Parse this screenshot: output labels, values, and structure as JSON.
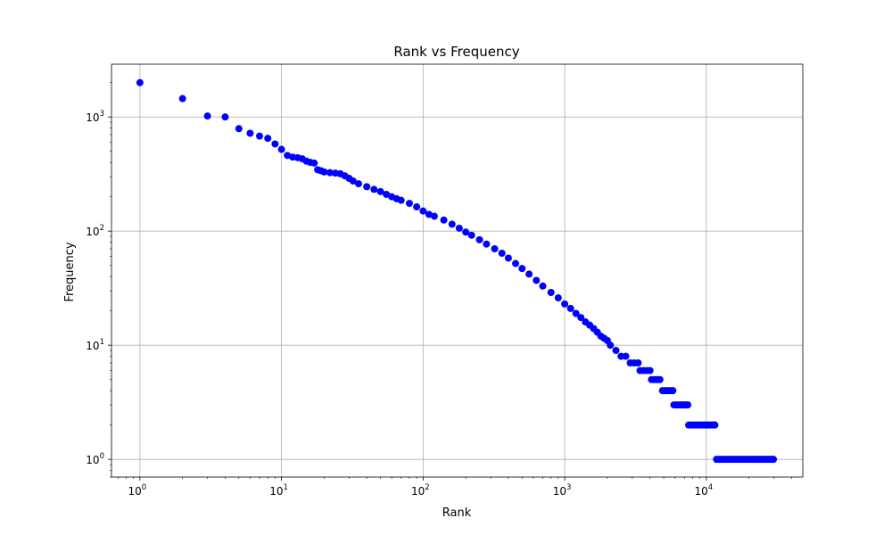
{
  "chart_data": {
    "type": "scatter",
    "title": "Rank vs Frequency",
    "xlabel": "Rank",
    "ylabel": "Frequency",
    "xscale": "log",
    "yscale": "log",
    "xlim": [
      0.63,
      48000
    ],
    "ylim": [
      0.7,
      2900
    ],
    "grid": true,
    "marker_color": "#0000ff",
    "x_ticks": [
      {
        "value": 1,
        "base": "10",
        "exp": "0"
      },
      {
        "value": 10,
        "base": "10",
        "exp": "1"
      },
      {
        "value": 100,
        "base": "10",
        "exp": "2"
      },
      {
        "value": 1000,
        "base": "10",
        "exp": "3"
      },
      {
        "value": 10000,
        "base": "10",
        "exp": "4"
      }
    ],
    "y_ticks": [
      {
        "value": 1,
        "base": "10",
        "exp": "0"
      },
      {
        "value": 10,
        "base": "10",
        "exp": "1"
      },
      {
        "value": 100,
        "base": "10",
        "exp": "2"
      },
      {
        "value": 1000,
        "base": "10",
        "exp": "3"
      }
    ],
    "series": [
      {
        "points": [
          [
            1,
            2000
          ],
          [
            2,
            1450
          ],
          [
            3,
            1020
          ],
          [
            4,
            1000
          ],
          [
            5,
            790
          ],
          [
            6,
            720
          ],
          [
            7,
            680
          ],
          [
            8,
            650
          ],
          [
            9,
            580
          ],
          [
            10,
            520
          ],
          [
            11,
            460
          ],
          [
            12,
            445
          ],
          [
            13,
            440
          ],
          [
            14,
            430
          ],
          [
            15,
            410
          ],
          [
            16,
            400
          ],
          [
            17,
            395
          ],
          [
            18,
            345
          ],
          [
            19,
            338
          ],
          [
            20,
            330
          ],
          [
            22,
            325
          ],
          [
            24,
            322
          ],
          [
            26,
            318
          ],
          [
            28,
            305
          ],
          [
            30,
            290
          ],
          [
            32,
            275
          ],
          [
            35,
            260
          ],
          [
            40,
            245
          ],
          [
            45,
            232
          ],
          [
            50,
            222
          ],
          [
            55,
            210
          ],
          [
            60,
            200
          ],
          [
            65,
            192
          ],
          [
            70,
            186
          ],
          [
            80,
            175
          ],
          [
            90,
            163
          ],
          [
            100,
            150
          ],
          [
            110,
            140
          ],
          [
            120,
            135
          ],
          [
            140,
            125
          ],
          [
            160,
            115
          ],
          [
            180,
            106
          ],
          [
            200,
            98
          ],
          [
            220,
            92
          ],
          [
            250,
            84
          ],
          [
            280,
            77
          ],
          [
            320,
            70
          ],
          [
            360,
            64
          ],
          [
            400,
            58
          ],
          [
            450,
            52
          ],
          [
            500,
            47
          ],
          [
            560,
            42
          ],
          [
            630,
            37
          ],
          [
            700,
            33
          ],
          [
            800,
            29
          ],
          [
            900,
            26
          ],
          [
            1000,
            23
          ],
          [
            1100,
            21
          ],
          [
            1200,
            19
          ],
          [
            1300,
            17.5
          ],
          [
            1400,
            16
          ],
          [
            1500,
            15
          ],
          [
            1600,
            14
          ],
          [
            1700,
            13
          ],
          [
            1800,
            12
          ],
          [
            1900,
            11.5
          ],
          [
            2000,
            11
          ],
          [
            2100,
            10
          ],
          [
            2300,
            9
          ],
          [
            2500,
            8
          ],
          [
            2700,
            8
          ],
          [
            2900,
            7
          ],
          [
            3100,
            7
          ],
          [
            3300,
            7
          ],
          [
            3400,
            6
          ],
          [
            3600,
            6
          ],
          [
            3800,
            6
          ],
          [
            4000,
            6
          ],
          [
            4100,
            5
          ],
          [
            4300,
            5
          ],
          [
            4500,
            5
          ],
          [
            4700,
            5
          ],
          [
            4900,
            4
          ],
          [
            5100,
            4
          ],
          [
            5300,
            4
          ],
          [
            5500,
            4
          ],
          [
            5700,
            4
          ],
          [
            5800,
            4
          ],
          [
            5900,
            3
          ],
          [
            6100,
            3
          ],
          [
            6300,
            3
          ],
          [
            6500,
            3
          ],
          [
            6700,
            3
          ],
          [
            6900,
            3
          ],
          [
            7100,
            3
          ],
          [
            7300,
            3
          ],
          [
            7400,
            3
          ],
          [
            7500,
            2
          ],
          [
            7800,
            2
          ],
          [
            8100,
            2
          ],
          [
            8400,
            2
          ],
          [
            8700,
            2
          ],
          [
            9000,
            2
          ],
          [
            9300,
            2
          ],
          [
            9600,
            2
          ],
          [
            9900,
            2
          ],
          [
            10200,
            2
          ],
          [
            10500,
            2
          ],
          [
            10800,
            2
          ],
          [
            11100,
            2
          ],
          [
            11400,
            2
          ],
          [
            11500,
            2
          ],
          [
            11800,
            1
          ],
          [
            12300,
            1
          ],
          [
            12800,
            1
          ],
          [
            13300,
            1
          ],
          [
            13800,
            1
          ],
          [
            14300,
            1
          ],
          [
            14800,
            1
          ],
          [
            15300,
            1
          ],
          [
            15800,
            1
          ],
          [
            16400,
            1
          ],
          [
            17000,
            1
          ],
          [
            17600,
            1
          ],
          [
            18200,
            1
          ],
          [
            18800,
            1
          ],
          [
            19400,
            1
          ],
          [
            20000,
            1
          ],
          [
            20700,
            1
          ],
          [
            21400,
            1
          ],
          [
            22100,
            1
          ],
          [
            22800,
            1
          ],
          [
            23500,
            1
          ],
          [
            24300,
            1
          ],
          [
            25100,
            1
          ],
          [
            25900,
            1
          ],
          [
            26700,
            1
          ],
          [
            27500,
            1
          ],
          [
            28300,
            1
          ],
          [
            29100,
            1
          ],
          [
            29800,
            1
          ]
        ]
      }
    ]
  }
}
